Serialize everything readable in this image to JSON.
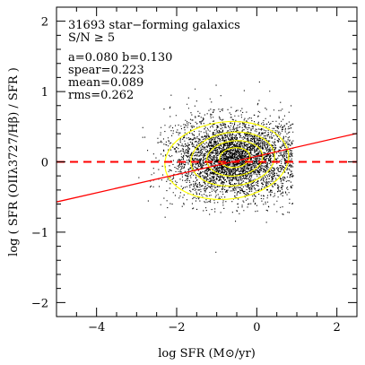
{
  "chart_data": {
    "type": "scatter",
    "xlim": [
      -5,
      2.5
    ],
    "ylim": [
      -2.2,
      2.2
    ],
    "xlabel": "log SFR (M⊙/yr)",
    "ylabel": "log ( SFR (OIIλ3727/Hβ) / SFR )",
    "xticks": [
      -4,
      -2,
      0,
      2
    ],
    "xtick_labels": [
      "−4",
      "−2",
      "0",
      "2"
    ],
    "yticks": [
      -2,
      -1,
      0,
      1,
      2
    ],
    "ytick_labels": [
      "−2",
      "−1",
      "0",
      "1",
      "2"
    ],
    "grid": false,
    "annotations": [
      "31693 star−forming galaxics",
      "S/N ≥ 5",
      "a=0.080    b=0.130",
      "spear=0.223",
      "mean=0.089",
      "rms=0.262"
    ],
    "point_count": 31693,
    "point_color": "#000000",
    "distribution": {
      "x_center": -0.6,
      "x_sigma": 0.75,
      "y_center": 0.05,
      "y_sigma": 0.26
    },
    "fit_line": {
      "a": 0.08,
      "b": 0.13,
      "color": "#ff0000",
      "style": "solid"
    },
    "zero_line": {
      "y": 0,
      "color": "#ff0000",
      "style": "dashed"
    },
    "contour_color": "#ffff00",
    "contours": [
      {
        "center": [
          -0.75,
          0.02
        ],
        "radius": [
          1.55,
          0.55
        ]
      },
      {
        "center": [
          -0.6,
          0.04
        ],
        "radius": [
          1.05,
          0.38
        ]
      },
      {
        "center": [
          -0.55,
          0.05
        ],
        "radius": [
          0.7,
          0.25
        ]
      },
      {
        "center": [
          -0.55,
          0.06
        ],
        "radius": [
          0.38,
          0.14
        ]
      }
    ]
  }
}
